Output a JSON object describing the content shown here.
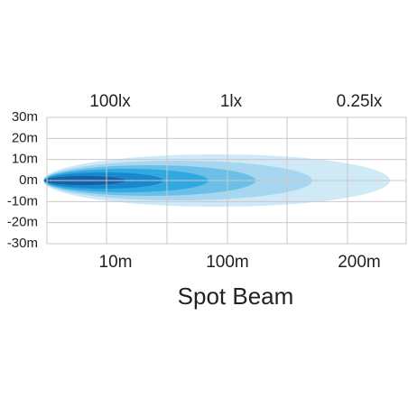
{
  "chart_data": {
    "type": "beam",
    "title": "Spot Beam",
    "top_labels": [
      "100lx",
      "1lx",
      "0.25lx"
    ],
    "x_labels": [
      "10m",
      "100m",
      "200m"
    ],
    "ylim": [
      -30,
      30
    ],
    "yticks": [
      {
        "value": 30,
        "label": "30m"
      },
      {
        "value": 20,
        "label": "20m"
      },
      {
        "value": 10,
        "label": "10m"
      },
      {
        "value": 0,
        "label": "0m"
      },
      {
        "value": -10,
        "label": "-10m"
      },
      {
        "value": -20,
        "label": "-20m"
      },
      {
        "value": -30,
        "label": "-30m"
      }
    ],
    "grid": true
  }
}
